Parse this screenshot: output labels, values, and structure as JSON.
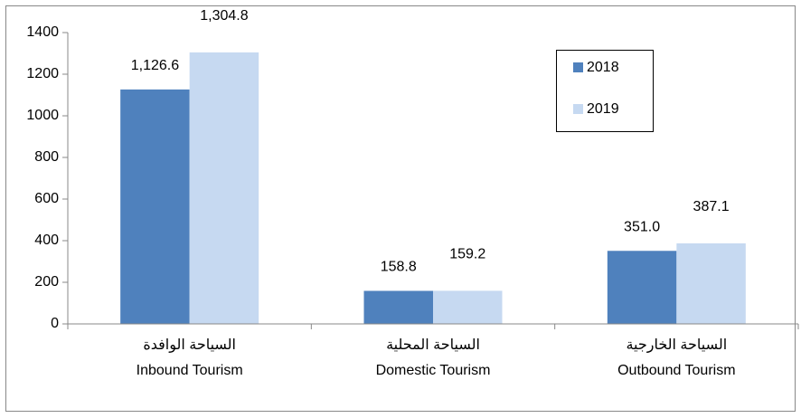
{
  "chart_data": {
    "type": "bar",
    "categories": [
      [
        "السياحة الوافدة",
        "Inbound Tourism"
      ],
      [
        "السياحة المحلية",
        "Domestic Tourism"
      ],
      [
        "السياحة الخارجية",
        "Outbound Tourism"
      ]
    ],
    "series": [
      {
        "name": "2018",
        "color": "#4f81bd",
        "values": [
          1126.6,
          158.8,
          351.0
        ],
        "value_labels": [
          "1,126.6",
          "158.8",
          "351.0"
        ]
      },
      {
        "name": "2019",
        "color": "#c6d9f1",
        "values": [
          1304.8,
          159.2,
          387.1
        ],
        "value_labels": [
          "1,304.8",
          "159.2",
          "387.1"
        ]
      }
    ],
    "ylim": [
      0,
      1400
    ],
    "yticks": [
      0,
      200,
      400,
      600,
      800,
      1000,
      1200,
      1400
    ],
    "legend": "upper right"
  }
}
